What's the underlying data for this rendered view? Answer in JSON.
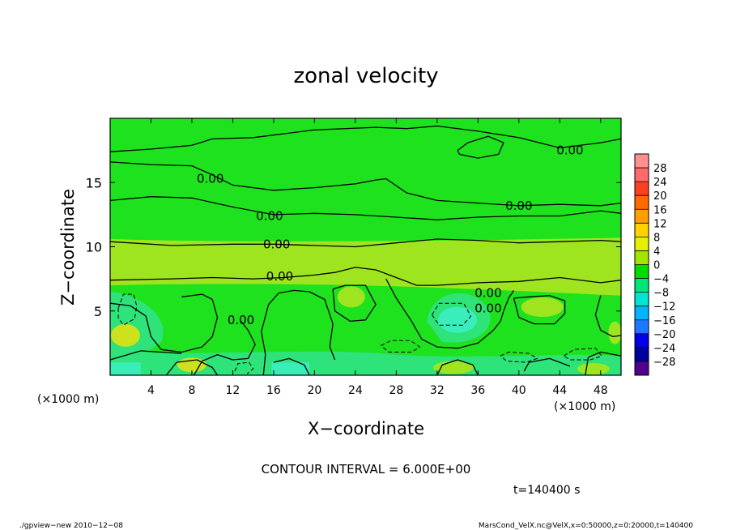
{
  "chart_data": {
    "type": "heatmap",
    "title": "zonal velocity",
    "xlabel": "X−coordinate",
    "ylabel": "Z−coordinate",
    "x_unit_left": "(×1000 m)",
    "x_unit_right": "(×1000 m)",
    "xlim": [
      0,
      50
    ],
    "ylim": [
      0,
      20
    ],
    "x_ticks": [
      4,
      8,
      12,
      16,
      20,
      24,
      28,
      32,
      36,
      40,
      44,
      48
    ],
    "y_ticks": [
      5,
      10,
      15
    ],
    "contour_interval_text": "CONTOUR INTERVAL = 6.000E+00",
    "time_text": "t=140400 s",
    "contour_labels": [
      {
        "text": "0.00",
        "x": 9.8,
        "z": 15.3
      },
      {
        "text": "0.00",
        "x": 15.6,
        "z": 12.4
      },
      {
        "text": "0.00",
        "x": 16.3,
        "z": 10.2
      },
      {
        "text": "0.00",
        "x": 16.6,
        "z": 7.7
      },
      {
        "text": "0.00",
        "x": 12.8,
        "z": 4.3
      },
      {
        "text": "0.00",
        "x": 40.0,
        "z": 13.2
      },
      {
        "text": "0.00",
        "x": 45.0,
        "z": 17.5
      },
      {
        "text": "0.00",
        "x": 37.0,
        "z": 6.4
      },
      {
        "text": "0.00",
        "x": 37.0,
        "z": 5.2
      }
    ],
    "colorbar": {
      "labels": [
        "28",
        "24",
        "20",
        "16",
        "12",
        "8",
        "4",
        "0",
        "−4",
        "−8",
        "−12",
        "−16",
        "−20",
        "−24",
        "−28"
      ],
      "colors": [
        "#ff9090",
        "#ff6a6a",
        "#ff4020",
        "#ff6a00",
        "#ffa000",
        "#ffd200",
        "#e6f000",
        "#a0e600",
        "#00dc00",
        "#00e678",
        "#00e6d2",
        "#00b4ff",
        "#1e78ff",
        "#0000e6",
        "#0000a0",
        "#50008c"
      ]
    },
    "field_colors": {
      "base": "#1fe21f",
      "positive": "#9fe51f",
      "strong_positive": "#cce21d",
      "negative": "#2ee37a",
      "strong_negative": "#3ceec8"
    }
  },
  "footer": {
    "left": "./gpview−new  2010−12−08",
    "right": "MarsCond_VelX.nc@VelX,x=0:50000,z=0:20000,t=140400"
  }
}
